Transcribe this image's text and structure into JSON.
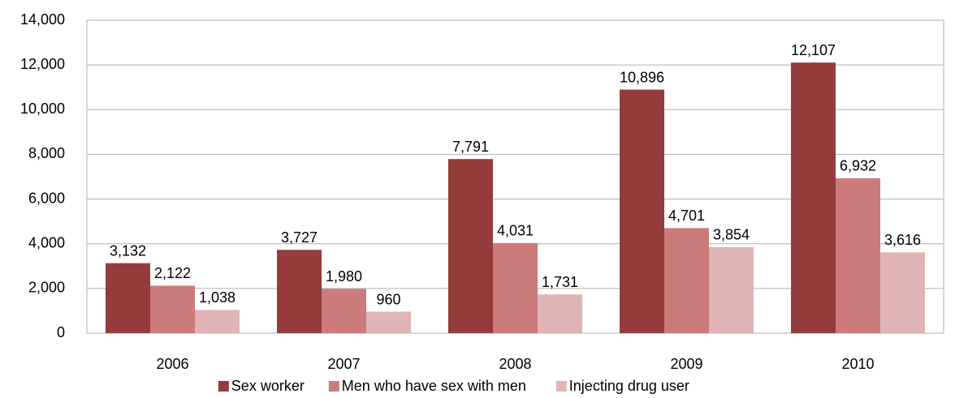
{
  "chart_data": {
    "type": "bar",
    "categories": [
      "2006",
      "2007",
      "2008",
      "2009",
      "2010"
    ],
    "series": [
      {
        "name": "Sex worker",
        "color": "#943c3c",
        "values": [
          3132,
          3727,
          7791,
          10896,
          12107
        ],
        "value_labels": [
          "3,132",
          "3,727",
          "7,791",
          "10,896",
          "12,107"
        ]
      },
      {
        "name": "Men who have sex with men",
        "color": "#cc7b7b",
        "values": [
          2122,
          1980,
          4031,
          4701,
          6932
        ],
        "value_labels": [
          "2,122",
          "1,980",
          "4,031",
          "4,701",
          "6,932"
        ]
      },
      {
        "name": "Injecting drug user",
        "color": "#e0b4b4",
        "values": [
          1038,
          960,
          1731,
          3854,
          3616
        ],
        "value_labels": [
          "1,038",
          "960",
          "1,731",
          "3,854",
          "3,616"
        ]
      }
    ],
    "ylim": [
      0,
      14000
    ],
    "yticks": [
      0,
      {
        "value": 2000,
        "label": "2,000"
      },
      {
        "value": 4000,
        "label": "4,000"
      },
      {
        "value": 6000,
        "label": "6,000"
      },
      {
        "value": 8000,
        "label": "8,000"
      },
      {
        "value": 10000,
        "label": "10,000"
      },
      {
        "value": 12000,
        "label": "12,000"
      },
      {
        "value": 14000,
        "label": "14,000"
      }
    ],
    "grid": true,
    "legend": "bottom"
  }
}
